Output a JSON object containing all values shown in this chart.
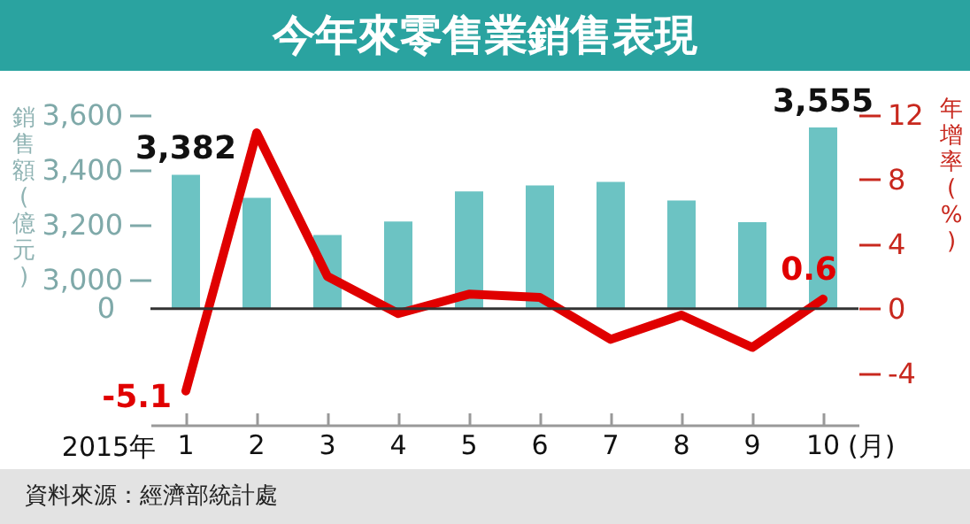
{
  "chart_data": {
    "type": "bar",
    "title": "今年來零售業銷售表現",
    "xlabel": "2015年",
    "ylabel": "銷售額(億元)",
    "y2label": "年增率(%)",
    "annotations": [
      "(月)",
      "資料來源：經濟部統計處"
    ],
    "categories": [
      "1",
      "2",
      "3",
      "4",
      "5",
      "6",
      "7",
      "8",
      "9",
      "10"
    ],
    "series": [
      {
        "color": "#6cc3c3",
        "values": [
          3382,
          3298,
          3162,
          3211,
          3321,
          3343,
          3356,
          3288,
          3209,
          3555
        ],
        "value_labels": [
          "3,382",
          null,
          null,
          null,
          null,
          null,
          null,
          null,
          null,
          "3,555"
        ]
      },
      {
        "type": "line",
        "axis": "y2",
        "color": "#e00000",
        "values": [
          -5.1,
          10.9,
          2.0,
          -0.3,
          0.9,
          0.7,
          -1.9,
          -0.4,
          -2.4,
          0.6
        ],
        "value_labels": [
          "-5.1",
          null,
          null,
          null,
          null,
          null,
          null,
          null,
          null,
          "0.6"
        ]
      }
    ],
    "ylim": [
      2893,
      3600
    ],
    "yticks": [
      {
        "value": 3000,
        "label": "3,000"
      },
      {
        "value": 3200,
        "label": "3,200"
      },
      {
        "value": 3400,
        "label": "3,400"
      },
      {
        "value": 3600,
        "label": "3,600"
      }
    ],
    "y2lim": [
      -7.2,
      12
    ],
    "y2ticks": [
      -4,
      0,
      4,
      8,
      12
    ],
    "ref_lines": [
      {
        "axis": "y2",
        "value": 0,
        "label": "0",
        "color": "#333333"
      }
    ],
    "grid": false,
    "marker": "none",
    "line_style": "solid"
  }
}
